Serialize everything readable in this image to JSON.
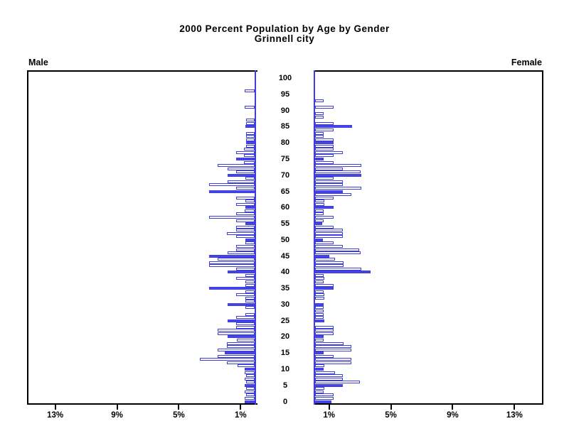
{
  "title": {
    "line1": "2000 Percent Population by Age by Gender",
    "line2": "Grinnell city"
  },
  "labels": {
    "male": "Male",
    "female": "Female"
  },
  "age_axis": {
    "tick_ages": [
      0,
      5,
      10,
      15,
      20,
      25,
      30,
      35,
      40,
      45,
      50,
      55,
      60,
      65,
      70,
      75,
      80,
      85,
      90,
      95,
      100
    ]
  },
  "x_axis": {
    "male_tick_labels": [
      "13%",
      "9%",
      "5%",
      "1%"
    ],
    "male_tick_values": [
      13,
      9,
      5,
      1
    ],
    "female_tick_labels": [
      "1%",
      "5%",
      "9%",
      "13%"
    ],
    "female_tick_values": [
      1,
      5,
      9,
      13
    ]
  },
  "colors": {
    "bar_blue": "#4545e8",
    "bar_outline_blue": "#3d3de0",
    "axis_black": "#000000",
    "background": "#ffffff"
  },
  "chart_data": {
    "type": "bar",
    "variant": "population-pyramid",
    "title": "2000 Percent Population by Age by Gender",
    "subtitle": "Grinnell city",
    "xlabel": "Percent of population (left = Male, right = Female)",
    "ylabel": "Single year of age, 0 to 100",
    "age_min": 0,
    "age_max": 100,
    "axis_range_percent": [
      0,
      14.8
    ],
    "tick_percents": [
      1,
      5,
      9,
      13
    ],
    "highlight_rule": "bars for ages divisible by 5 are solid filled; all other ages are white bars with blue outline",
    "grid": false,
    "legend": "none",
    "series": [
      {
        "name": "Male",
        "direction": "left",
        "values_percent_by_age": [
          0.65,
          0.65,
          0.55,
          0.65,
          0.55,
          0.65,
          0.55,
          0.65,
          0.55,
          0.65,
          0.65,
          1.1,
          1.8,
          3.55,
          2.4,
          1.95,
          2.4,
          1.8,
          1.8,
          1.15,
          1.75,
          2.4,
          2.4,
          1.2,
          1.2,
          1.75,
          1.2,
          0.6,
          0.0,
          0.6,
          1.75,
          0.6,
          0.6,
          1.2,
          0.6,
          2.95,
          0.6,
          0.6,
          1.2,
          0.6,
          1.75,
          1.2,
          2.95,
          2.95,
          2.4,
          2.95,
          1.75,
          1.2,
          1.2,
          0.6,
          0.6,
          1.2,
          1.8,
          1.2,
          1.2,
          0.6,
          1.2,
          2.95,
          1.2,
          0.65,
          0.6,
          1.2,
          0.6,
          1.2,
          0.0,
          2.95,
          1.2,
          2.95,
          1.75,
          0.6,
          1.75,
          1.2,
          1.75,
          2.4,
          0.7,
          1.2,
          0.7,
          1.2,
          0.7,
          0.55,
          0.55,
          0.55,
          0.55,
          0.55,
          0.0,
          0.6,
          0.55,
          0.55,
          0.0,
          0.0,
          0.0,
          0.65,
          0.0,
          0.0,
          0.0,
          0.0,
          0.65,
          0.0,
          0.0,
          0.0,
          0.0
        ]
      },
      {
        "name": "Female",
        "direction": "right",
        "values_percent_by_age": [
          1.05,
          1.18,
          1.18,
          0.54,
          0.6,
          1.78,
          2.9,
          1.78,
          1.78,
          1.3,
          0.54,
          0.6,
          2.34,
          2.34,
          1.18,
          0.54,
          2.34,
          2.34,
          1.83,
          0.54,
          0.54,
          1.18,
          1.18,
          1.18,
          0.0,
          0.6,
          0.54,
          0.54,
          0.54,
          0.54,
          0.54,
          0.0,
          0.6,
          0.6,
          0.54,
          1.18,
          1.18,
          0.54,
          0.6,
          0.54,
          3.6,
          3.0,
          1.83,
          1.83,
          1.3,
          0.9,
          2.95,
          2.87,
          1.78,
          1.18,
          0.5,
          1.78,
          1.78,
          1.78,
          1.18,
          0.48,
          0.54,
          1.18,
          0.54,
          0.54,
          1.18,
          0.6,
          0.6,
          1.18,
          2.34,
          1.78,
          3.0,
          1.78,
          1.78,
          1.18,
          3.0,
          2.95,
          1.78,
          3.0,
          1.18,
          0.54,
          1.18,
          1.78,
          1.18,
          1.18,
          1.18,
          1.18,
          0.54,
          0.54,
          1.18,
          2.41,
          1.18,
          0.0,
          0.54,
          0.54,
          0.0,
          1.18,
          0.0,
          0.54,
          0.0,
          0.0,
          0.0,
          0.0,
          0.0,
          0.0,
          0.0
        ]
      }
    ]
  }
}
